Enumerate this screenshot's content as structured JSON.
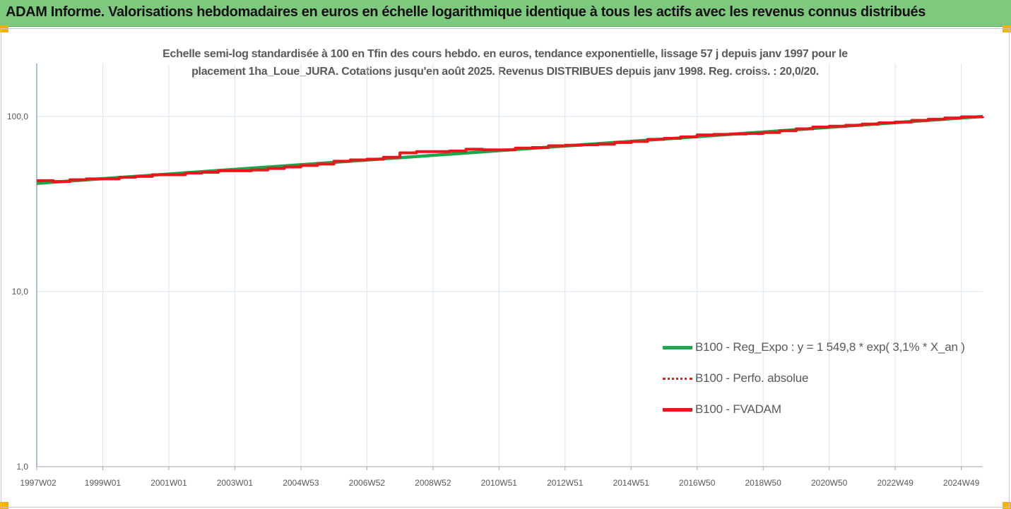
{
  "banner": {
    "title": "ADAM Informe. Valorisations hebdomadaires en euros en échelle logarithmique identique à tous les actifs avec les revenus connus distribués"
  },
  "colors": {
    "banner_bg": "#7dc97d",
    "corner_accent": "#f2b400",
    "reg_expo": "#1fa64a",
    "perfo": "#e0201b",
    "fvadam": "#e8161b",
    "grid": "#d9e6f2",
    "axis": "#4f81bd"
  },
  "chart_data": {
    "type": "line",
    "title_lines": [
      "Echelle semi-log standardisée à 100 en Tfin des cours hebdo. en euros, tendance exponentielle, lissage 57 j depuis janv 1997 pour le",
      "placement 1ha_Loue_JURA. Cotations jusqu'en août 2025. Revenus DISTRIBUES depuis janv 1998. Reg. croiss. : 20,0/20."
    ],
    "yscale": "log",
    "ylim": [
      1,
      200
    ],
    "yticks": [
      {
        "value": 1,
        "label": "1,0"
      },
      {
        "value": 10,
        "label": "10,0"
      },
      {
        "value": 100,
        "label": "100,0"
      }
    ],
    "xlim": [
      1997.0,
      2025.65
    ],
    "xticks": [
      {
        "value": 1997.0,
        "label": "1997W02"
      },
      {
        "value": 1999.0,
        "label": "1999W01"
      },
      {
        "value": 2001.0,
        "label": "2001W01"
      },
      {
        "value": 2003.0,
        "label": "2003W01"
      },
      {
        "value": 2005.0,
        "label": "2004W53"
      },
      {
        "value": 2007.0,
        "label": "2006W52"
      },
      {
        "value": 2009.0,
        "label": "2008W52"
      },
      {
        "value": 2011.0,
        "label": "2010W51"
      },
      {
        "value": 2013.0,
        "label": "2012W51"
      },
      {
        "value": 2015.0,
        "label": "2014W51"
      },
      {
        "value": 2017.0,
        "label": "2016W50"
      },
      {
        "value": 2019.0,
        "label": "2018W50"
      },
      {
        "value": 2021.0,
        "label": "2020W50"
      },
      {
        "value": 2023.0,
        "label": "2022W49"
      },
      {
        "value": 2025.0,
        "label": "2024W49"
      }
    ],
    "grid": true,
    "legend_position": "bottom-right",
    "series": [
      {
        "name": "B100 - Reg_Expo : y = 1 549,8 * exp( 3,1% *  X_an )",
        "style": "solid-thick",
        "x": [
          1997.0,
          2025.65
        ],
        "y": [
          41.5,
          100.0
        ]
      },
      {
        "name": "B100 - Perfo. absolue",
        "style": "dotted",
        "x": [
          1997.0,
          1997.5,
          1998.0,
          1998.5,
          1999.0,
          1999.5,
          2000.0,
          2000.5,
          2001.0,
          2001.5,
          2002.0,
          2002.5,
          2003.0,
          2003.5,
          2004.0,
          2004.5,
          2005.0,
          2005.5,
          2006.0,
          2006.5,
          2007.0,
          2007.5,
          2008.0,
          2008.5,
          2009.0,
          2009.5,
          2010.0,
          2010.5,
          2011.0,
          2011.5,
          2012.0,
          2012.5,
          2013.0,
          2013.5,
          2014.0,
          2014.5,
          2015.0,
          2015.5,
          2016.0,
          2016.5,
          2017.0,
          2017.5,
          2018.0,
          2018.5,
          2019.0,
          2019.5,
          2020.0,
          2020.5,
          2021.0,
          2021.5,
          2022.0,
          2022.5,
          2023.0,
          2023.5,
          2024.0,
          2024.5,
          2025.0,
          2025.65
        ],
        "y": [
          43.0,
          42.5,
          43.5,
          44.0,
          44.0,
          45.0,
          45.5,
          46.5,
          46.5,
          47.5,
          48.0,
          49.0,
          49.0,
          49.5,
          50.5,
          51.5,
          52.5,
          53.5,
          55.5,
          56.5,
          57.0,
          58.5,
          62.0,
          63.0,
          63.0,
          63.5,
          65.0,
          64.5,
          64.5,
          66.0,
          66.5,
          68.0,
          68.5,
          69.0,
          69.5,
          71.0,
          72.0,
          74.0,
          75.0,
          76.5,
          78.5,
          79.0,
          79.5,
          80.0,
          81.0,
          83.0,
          85.0,
          87.0,
          88.0,
          89.0,
          90.5,
          92.0,
          93.0,
          95.0,
          96.5,
          98.0,
          99.5,
          100.0
        ]
      },
      {
        "name": "B100 - FVADAM",
        "style": "solid-thick",
        "x": [
          1997.0,
          1997.5,
          1998.0,
          1998.5,
          1999.0,
          1999.5,
          2000.0,
          2000.5,
          2001.0,
          2001.5,
          2002.0,
          2002.5,
          2003.0,
          2003.5,
          2004.0,
          2004.5,
          2005.0,
          2005.5,
          2006.0,
          2006.5,
          2007.0,
          2007.5,
          2008.0,
          2008.5,
          2009.0,
          2009.5,
          2010.0,
          2010.5,
          2011.0,
          2011.5,
          2012.0,
          2012.5,
          2013.0,
          2013.5,
          2014.0,
          2014.5,
          2015.0,
          2015.5,
          2016.0,
          2016.5,
          2017.0,
          2017.5,
          2018.0,
          2018.5,
          2019.0,
          2019.5,
          2020.0,
          2020.5,
          2021.0,
          2021.5,
          2022.0,
          2022.5,
          2023.0,
          2023.5,
          2024.0,
          2024.5,
          2025.0,
          2025.65
        ],
        "y": [
          43.0,
          42.5,
          43.5,
          44.0,
          44.0,
          45.0,
          45.5,
          46.5,
          46.5,
          47.5,
          48.0,
          49.0,
          49.0,
          49.5,
          50.5,
          51.5,
          52.5,
          53.5,
          55.5,
          56.5,
          57.0,
          58.5,
          62.0,
          63.0,
          63.0,
          63.5,
          65.0,
          64.5,
          64.5,
          66.0,
          66.5,
          68.0,
          68.5,
          69.0,
          69.5,
          71.0,
          72.0,
          74.0,
          75.0,
          76.5,
          78.5,
          79.0,
          79.5,
          80.0,
          81.0,
          83.0,
          85.0,
          87.0,
          88.0,
          89.0,
          90.5,
          92.0,
          93.0,
          95.0,
          96.5,
          98.0,
          99.5,
          100.0
        ]
      }
    ]
  }
}
